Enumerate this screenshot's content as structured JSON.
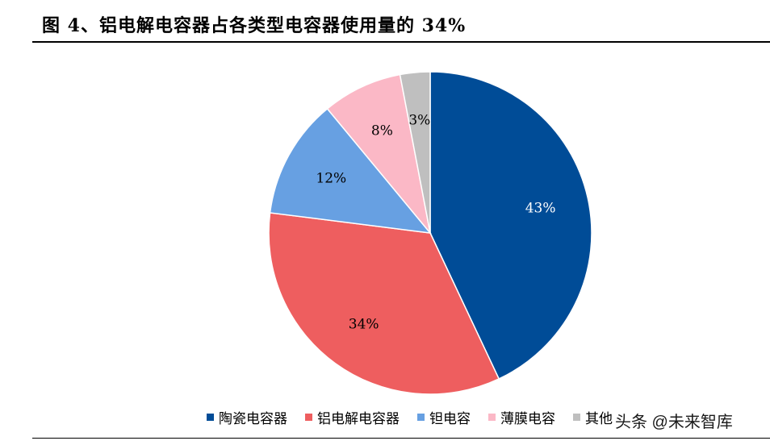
{
  "title": "图 4、铝电解电容器占各类型电容器使用量的 34%",
  "chart_data": {
    "type": "pie",
    "categories": [
      "陶瓷电容器",
      "铝电解电容器",
      "钽电容",
      "薄膜电容",
      "其他"
    ],
    "values": [
      43,
      34,
      12,
      8,
      3
    ],
    "labels": [
      "43%",
      "34%",
      "12%",
      "8%",
      "3%"
    ],
    "colors": [
      "#004C97",
      "#EE5E5F",
      "#67A0E2",
      "#FBB8C6",
      "#BFBFBF"
    ],
    "label_colors": [
      "#ffffff",
      "#000000",
      "#000000",
      "#000000",
      "#000000"
    ],
    "legend_position": "bottom",
    "start": "top",
    "direction": "clockwise"
  },
  "watermark": "头条 @未来智库"
}
